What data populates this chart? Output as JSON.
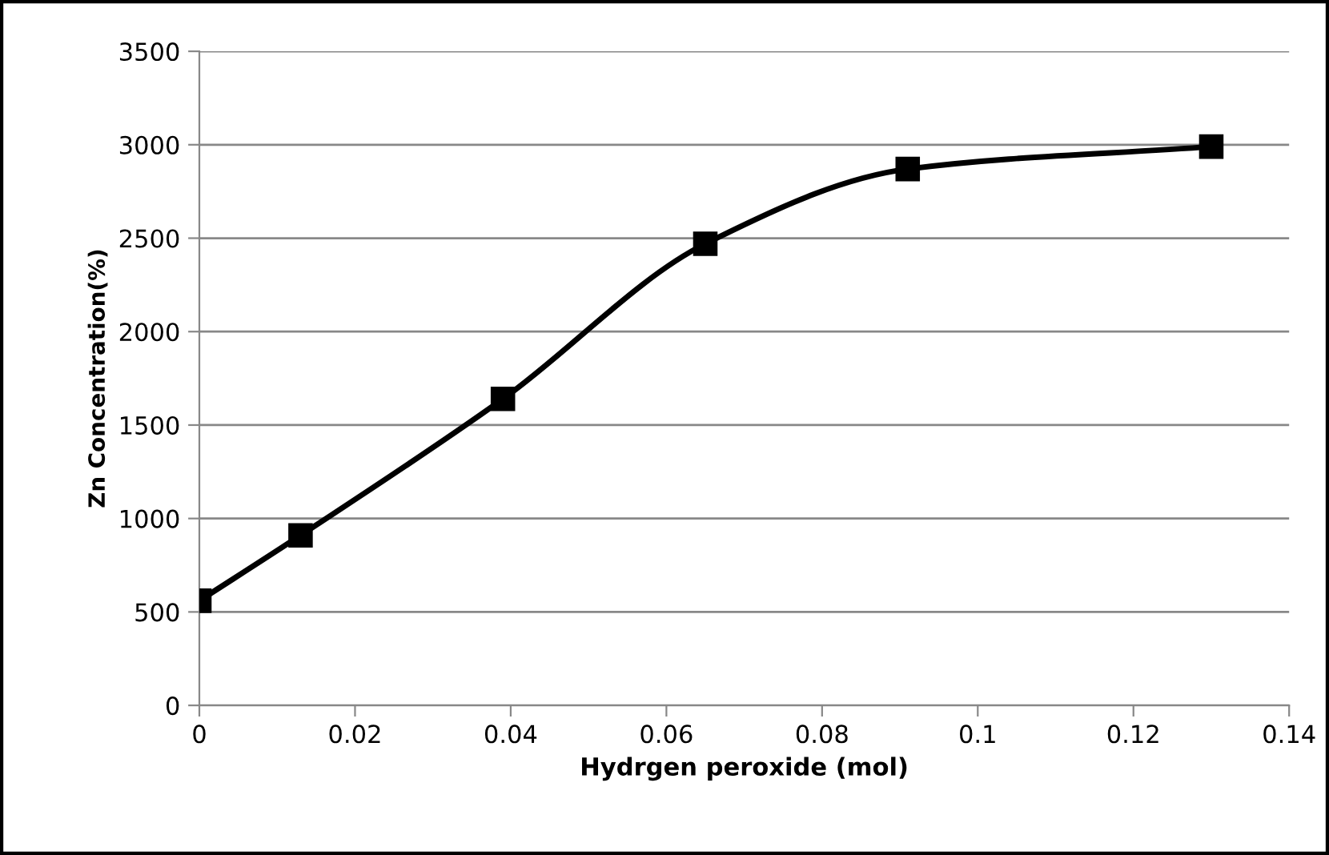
{
  "chart_data": {
    "type": "line",
    "xlabel": "Hydrgen peroxide (mol)",
    "ylabel": "Zn Concentration(%)",
    "x": [
      0,
      0.013,
      0.039,
      0.065,
      0.091,
      0.13
    ],
    "series": [
      {
        "color": "#000000",
        "values": [
          560,
          910,
          1640,
          2470,
          2870,
          2990
        ]
      }
    ],
    "xlim": [
      0,
      0.14
    ],
    "xticks": [
      0,
      0.02,
      0.04,
      0.06,
      0.08,
      0.1,
      0.12,
      0.14
    ],
    "ylim": [
      0,
      3500
    ],
    "yticks": [
      0,
      500,
      1000,
      1500,
      2000,
      2500,
      3000,
      3500
    ],
    "grid": "y",
    "marker": "square",
    "line_style": "solid",
    "legend": false
  }
}
